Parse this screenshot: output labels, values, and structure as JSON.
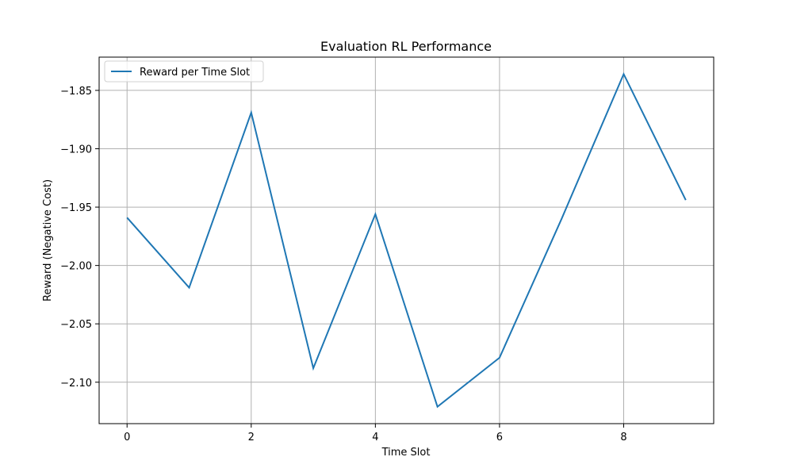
{
  "chart_data": {
    "type": "line",
    "title": "Evaluation RL Performance",
    "xlabel": "Time Slot",
    "ylabel": "Reward (Negative Cost)",
    "x": [
      0,
      1,
      2,
      3,
      4,
      5,
      6,
      7,
      8,
      9
    ],
    "series": [
      {
        "name": "Reward per Time Slot",
        "color": "#1f77b4",
        "values": [
          -1.959,
          -2.019,
          -1.869,
          -2.088,
          -1.956,
          -2.121,
          -2.079,
          -1.96,
          -1.836,
          -1.944
        ]
      }
    ],
    "xlim": [
      -0.45,
      9.45
    ],
    "ylim": [
      -2.1355,
      -1.8215
    ],
    "xticks": [
      0,
      2,
      4,
      6,
      8
    ],
    "xtick_labels": [
      "0",
      "2",
      "4",
      "6",
      "8"
    ],
    "yticks": [
      -1.85,
      -1.9,
      -1.95,
      -2.0,
      -2.05,
      -2.1
    ],
    "ytick_labels": [
      "−1.85",
      "−1.90",
      "−1.95",
      "−2.00",
      "−2.05",
      "−2.10"
    ],
    "grid": true,
    "grid_color": "#b0b0b0",
    "legend_position": "upper left"
  }
}
